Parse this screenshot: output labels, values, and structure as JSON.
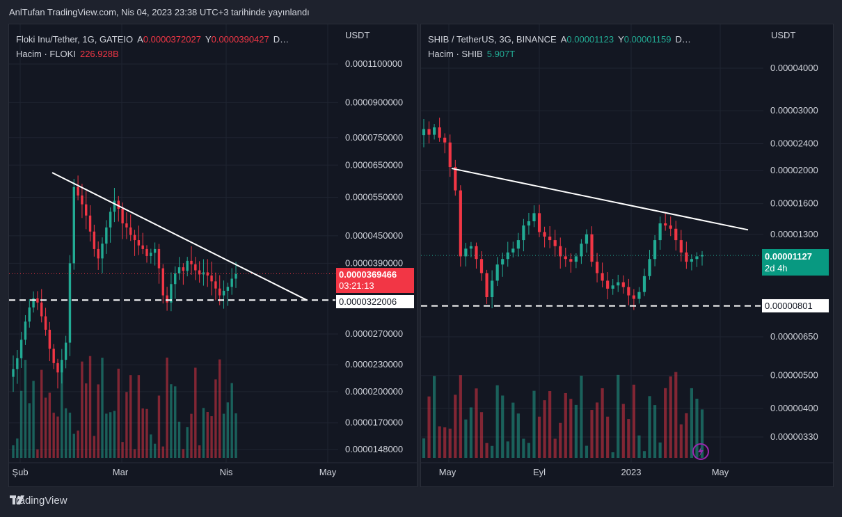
{
  "header": {
    "title": "AnlTufan TradingView.com, Nis 04, 2023 23:38 UTC+3 tarihinde yayınlandı"
  },
  "footer": {
    "brand": "TradingView"
  },
  "colors": {
    "up": "#22ab94",
    "down": "#f23645",
    "background": "#131722",
    "trendline": "#ffffff"
  },
  "chart_data": [
    {
      "type": "candlestick",
      "symbol": "Floki Inu/Tether, 1G, GATEIO",
      "legend": {
        "a_label": "A",
        "a_value": "0.0000372027",
        "y_label": "Y",
        "y_value": "0.0000390427",
        "more": "D…",
        "volume_label": "Hacim · FLOKI",
        "volume_value": "226.928B"
      },
      "unit": "USDT",
      "y_scale": "log",
      "y_ticks": [
        "0.0001100000",
        "0.0000900000",
        "0.0000750000",
        "0.0000650000",
        "0.0000550000",
        "0.0000450000",
        "0.0000390000",
        "0.0000270000",
        "0.0000230000",
        "0.0000200000",
        "0.0000170000",
        "0.0000148000"
      ],
      "x_ticks": [
        "Şub",
        "Mar",
        "Nis",
        "May"
      ],
      "last_price": {
        "value": "0.0000369466",
        "countdown": "03:21:13"
      },
      "support_label": "0.0000322006",
      "closes": [
        2.25e-05,
        2.38e-05,
        2.62e-05,
        2.88e-05,
        3.1e-05,
        3.25e-05,
        3.18e-05,
        2.96e-05,
        2.76e-05,
        2.5e-05,
        2.32e-05,
        2.21e-05,
        2.36e-05,
        2.58e-05,
        3.9e-05,
        5.8e-05,
        5.55e-05,
        5.3e-05,
        5e-05,
        4.6e-05,
        4.2e-05,
        4e-05,
        4.32e-05,
        4.7e-05,
        5.1e-05,
        5.4e-05,
        5.18e-05,
        4.8e-05,
        4.7e-05,
        4.52e-05,
        4.4e-05,
        4.28e-05,
        4.2e-05,
        4.05e-05,
        4.12e-05,
        4.2e-05,
        3.8e-05,
        3.3e-05,
        3.18e-05,
        3.5e-05,
        3.7e-05,
        3.82e-05,
        3.75e-05,
        3.95e-05,
        3.88e-05,
        3.76e-05,
        3.68e-05,
        3.72e-05,
        3.66e-05,
        3.55e-05,
        3.42e-05,
        3.3e-05,
        3.38e-05,
        3.45e-05,
        3.6e-05,
        3.69e-05
      ]
    },
    {
      "type": "candlestick",
      "symbol": "SHIB / TetherUS, 3G, BINANCE",
      "legend": {
        "a_label": "A",
        "a_value": "0.00001123",
        "y_label": "Y",
        "y_value": "0.00001159",
        "more": "D…",
        "volume_label": "Hacim · SHIB",
        "volume_value": "5.907T"
      },
      "unit": "USDT",
      "y_scale": "log",
      "y_ticks": [
        "0.00004000",
        "0.00003000",
        "0.00002400",
        "0.00002000",
        "0.00001600",
        "0.00001300",
        "0.00000650",
        "0.00000500",
        "0.00000400",
        "0.00000330"
      ],
      "x_ticks": [
        "May",
        "Eyl",
        "2023",
        "May"
      ],
      "last_price": {
        "value": "0.00001127",
        "countdown": "2d 4h"
      },
      "support_label": "0.00000801",
      "closes": [
        2.65e-05,
        2.55e-05,
        2.68e-05,
        2.5e-05,
        2.42e-05,
        2.05e-05,
        1.75e-05,
        1.12e-05,
        1.18e-05,
        1.2e-05,
        1.1e-05,
        1e-05,
        8.5e-06,
        9.5e-06,
        1.06e-05,
        1.1e-05,
        1.15e-05,
        1.18e-05,
        1.25e-05,
        1.38e-05,
        1.42e-05,
        1.5e-05,
        1.32e-05,
        1.28e-05,
        1.25e-05,
        1.2e-05,
        1.12e-05,
        1.1e-05,
        1.08e-05,
        1.12e-05,
        1.22e-05,
        1.3e-05,
        1.08e-05,
        1e-05,
        9.5e-06,
        9e-06,
        9.2e-06,
        9.4e-06,
        9.1e-06,
        8.6e-06,
        8.4e-06,
        8.8e-06,
        9.8e-06,
        1.1e-05,
        1.25e-05,
        1.4e-05,
        1.38e-05,
        1.35e-05,
        1.25e-05,
        1.15e-05,
        1.08e-05,
        1.1e-05,
        1.12e-05,
        1.13e-05
      ]
    }
  ]
}
